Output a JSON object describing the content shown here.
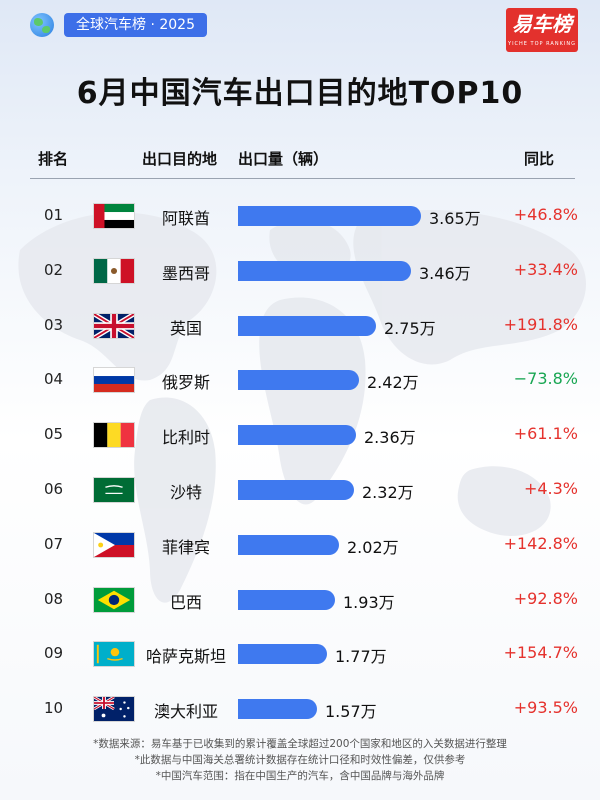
{
  "header": {
    "tag": "全球汽车榜 · 2025",
    "title": "6月中国汽车出口目的地TOP10",
    "logo_text": "易车榜",
    "logo_sub": "YICHE TOP RANKING"
  },
  "columns": {
    "rank": "排名",
    "destination": "出口目的地",
    "volume": "出口量（辆）",
    "yoy": "同比"
  },
  "chart_data": {
    "type": "bar",
    "orientation": "horizontal",
    "title": "6月中国汽车出口目的地TOP10",
    "unit": "万",
    "ylabel": "出口量（辆）",
    "categories": [
      "阿联酋",
      "墨西哥",
      "英国",
      "俄罗斯",
      "比利时",
      "沙特",
      "菲律宾",
      "巴西",
      "哈萨克斯坦",
      "澳大利亚"
    ],
    "ranks": [
      "01",
      "02",
      "03",
      "04",
      "05",
      "06",
      "07",
      "08",
      "09",
      "10"
    ],
    "flags": [
      "uae-flag",
      "mexico-flag",
      "uk-flag",
      "russia-flag",
      "belgium-flag",
      "saudi-flag",
      "philippines-flag",
      "brazil-flag",
      "kazakhstan-flag",
      "australia-flag"
    ],
    "values": [
      3.65,
      3.46,
      2.75,
      2.42,
      2.36,
      2.32,
      2.02,
      1.93,
      1.77,
      1.57
    ],
    "value_labels": [
      "3.65万",
      "3.46万",
      "2.75万",
      "2.42万",
      "2.36万",
      "2.32万",
      "2.02万",
      "1.93万",
      "1.77万",
      "1.57万"
    ],
    "yoy": [
      "+46.8%",
      "+33.4%",
      "+191.8%",
      "−73.8%",
      "+61.1%",
      "+4.3%",
      "+142.8%",
      "+92.8%",
      "+154.7%",
      "+93.5%"
    ],
    "bar_color": "#3f79ef",
    "positive_color": "#e5322d",
    "negative_color": "#19a653"
  },
  "notes": [
    "*数据来源：易车基于已收集到的累计覆盖全球超过200个国家和地区的入关数据进行整理",
    "*此数据与中国海关总署统计数据存在统计口径和时效性偏差，仅供参考",
    "*中国汽车范围：指在中国生产的汽车，含中国品牌与海外品牌"
  ]
}
